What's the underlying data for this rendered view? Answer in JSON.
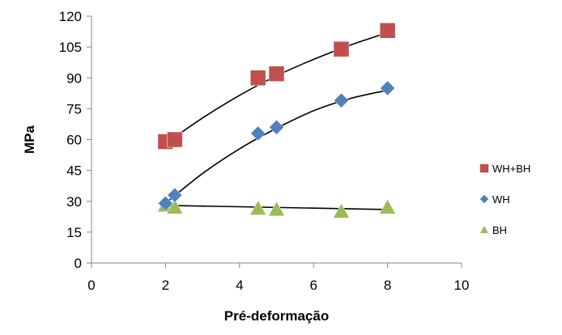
{
  "chart_data": {
    "type": "scatter",
    "title": "",
    "xlabel": "Pré-deformação",
    "ylabel": "MPa",
    "xlim": [
      0,
      10
    ],
    "ylim": [
      0,
      120
    ],
    "xticks": [
      0,
      2,
      4,
      6,
      8,
      10
    ],
    "yticks": [
      0,
      15,
      30,
      45,
      60,
      75,
      90,
      105,
      120
    ],
    "grid": false,
    "legend_position": "right",
    "series": [
      {
        "name": "WH+BH",
        "marker": "square",
        "color": "#C0504D",
        "x": [
          2,
          2.25,
          4.5,
          5,
          6.75,
          8
        ],
        "y": [
          59,
          60,
          90,
          92,
          104,
          113
        ],
        "trendline": {
          "x": [
            2,
            3,
            4,
            5,
            6,
            7,
            8
          ],
          "y": [
            58,
            70.5,
            81.5,
            91,
            99,
            106,
            112
          ]
        }
      },
      {
        "name": "WH",
        "marker": "diamond",
        "color": "#4F81BD",
        "x": [
          2,
          2.25,
          4.5,
          5,
          6.75,
          8
        ],
        "y": [
          29,
          33,
          63,
          66,
          79,
          85
        ],
        "trendline": {
          "x": [
            2,
            3,
            4,
            5,
            6,
            7,
            8
          ],
          "y": [
            29,
            43.5,
            55.5,
            65.5,
            74,
            80,
            84
          ]
        }
      },
      {
        "name": "BH",
        "marker": "triangle",
        "color": "#9BBB59",
        "x": [
          2,
          2.25,
          4.5,
          5,
          6.75,
          8
        ],
        "y": [
          28,
          27,
          26.5,
          26,
          25,
          27
        ],
        "trendline": {
          "x": [
            2,
            8
          ],
          "y": [
            28,
            26
          ]
        }
      }
    ]
  }
}
